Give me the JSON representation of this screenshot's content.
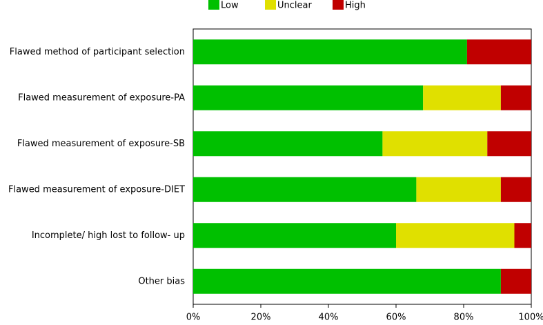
{
  "chart_data": {
    "type": "stacked-bar-horizontal",
    "categories": [
      "Flawed method of participant selection",
      "Flawed measurement of exposure-PA",
      "Flawed measurement of exposure-SB",
      "Flawed measurement of exposure-DIET",
      "Incomplete/ high lost to follow- up",
      "Other bias"
    ],
    "series": [
      {
        "name": "Low",
        "color": "#00c000",
        "values": [
          81,
          68,
          56,
          66,
          60,
          91
        ]
      },
      {
        "name": "Unclear",
        "color": "#e0e000",
        "values": [
          0,
          23,
          31,
          25,
          35,
          0
        ]
      },
      {
        "name": "High",
        "color": "#c00000",
        "values": [
          19,
          9,
          13,
          9,
          5,
          9
        ]
      }
    ],
    "xlim": [
      0,
      100
    ],
    "xticks": [
      {
        "value": 0,
        "label": "0%"
      },
      {
        "value": 20,
        "label": "20%"
      },
      {
        "value": 40,
        "label": "40%"
      },
      {
        "value": 60,
        "label": "60%"
      },
      {
        "value": 80,
        "label": "80%"
      },
      {
        "value": 100,
        "label": "100%"
      }
    ],
    "legend": "top"
  }
}
